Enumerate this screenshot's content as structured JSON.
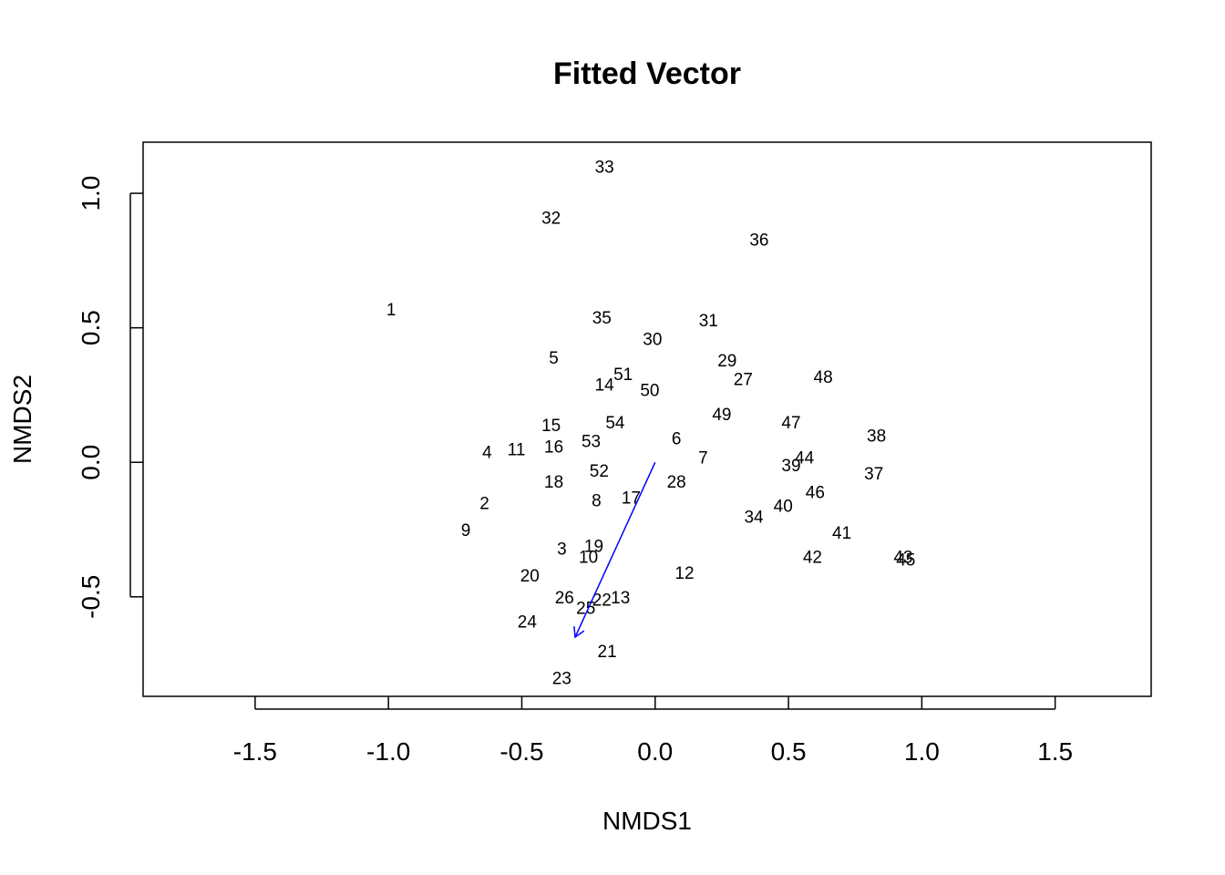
{
  "chart_data": {
    "type": "scatter",
    "title": "Fitted Vector",
    "xlabel": "NMDS1",
    "ylabel": "NMDS2",
    "xlim": [
      -1.92,
      1.86
    ],
    "ylim": [
      -0.87,
      1.19
    ],
    "x_ticks": [
      {
        "value": -1.5,
        "label": "-1.5"
      },
      {
        "value": -1.0,
        "label": "-1.0"
      },
      {
        "value": -0.5,
        "label": "-0.5"
      },
      {
        "value": 0.0,
        "label": "0.0"
      },
      {
        "value": 0.5,
        "label": "0.5"
      },
      {
        "value": 1.0,
        "label": "1.0"
      },
      {
        "value": 1.5,
        "label": "1.5"
      }
    ],
    "y_ticks": [
      {
        "value": -0.5,
        "label": "-0.5"
      },
      {
        "value": 0.0,
        "label": "0.0"
      },
      {
        "value": 0.5,
        "label": "0.5"
      },
      {
        "value": 1.0,
        "label": "1.0"
      }
    ],
    "grid": false,
    "points": [
      {
        "label": "1",
        "x": -0.99,
        "y": 0.57
      },
      {
        "label": "2",
        "x": -0.64,
        "y": -0.15
      },
      {
        "label": "3",
        "x": -0.35,
        "y": -0.32
      },
      {
        "label": "4",
        "x": -0.63,
        "y": 0.04
      },
      {
        "label": "5",
        "x": -0.38,
        "y": 0.39
      },
      {
        "label": "6",
        "x": 0.08,
        "y": 0.09
      },
      {
        "label": "7",
        "x": 0.18,
        "y": 0.02
      },
      {
        "label": "8",
        "x": -0.22,
        "y": -0.14
      },
      {
        "label": "9",
        "x": -0.71,
        "y": -0.25
      },
      {
        "label": "10",
        "x": -0.25,
        "y": -0.35
      },
      {
        "label": "11",
        "x": -0.52,
        "y": 0.05
      },
      {
        "label": "12",
        "x": 0.11,
        "y": -0.41
      },
      {
        "label": "13",
        "x": -0.13,
        "y": -0.5
      },
      {
        "label": "14",
        "x": -0.19,
        "y": 0.29
      },
      {
        "label": "15",
        "x": -0.39,
        "y": 0.14
      },
      {
        "label": "16",
        "x": -0.38,
        "y": 0.06
      },
      {
        "label": "17",
        "x": -0.09,
        "y": -0.13
      },
      {
        "label": "18",
        "x": -0.38,
        "y": -0.07
      },
      {
        "label": "19",
        "x": -0.23,
        "y": -0.31
      },
      {
        "label": "20",
        "x": -0.47,
        "y": -0.42
      },
      {
        "label": "21",
        "x": -0.18,
        "y": -0.7
      },
      {
        "label": "22",
        "x": -0.2,
        "y": -0.51
      },
      {
        "label": "23",
        "x": -0.35,
        "y": -0.8
      },
      {
        "label": "24",
        "x": -0.48,
        "y": -0.59
      },
      {
        "label": "25",
        "x": -0.26,
        "y": -0.54
      },
      {
        "label": "26",
        "x": -0.34,
        "y": -0.5
      },
      {
        "label": "27",
        "x": 0.33,
        "y": 0.31
      },
      {
        "label": "28",
        "x": 0.08,
        "y": -0.07
      },
      {
        "label": "29",
        "x": 0.27,
        "y": 0.38
      },
      {
        "label": "30",
        "x": -0.01,
        "y": 0.46
      },
      {
        "label": "31",
        "x": 0.2,
        "y": 0.53
      },
      {
        "label": "32",
        "x": -0.39,
        "y": 0.91
      },
      {
        "label": "33",
        "x": -0.19,
        "y": 1.1
      },
      {
        "label": "34",
        "x": 0.37,
        "y": -0.2
      },
      {
        "label": "35",
        "x": -0.2,
        "y": 0.54
      },
      {
        "label": "36",
        "x": 0.39,
        "y": 0.83
      },
      {
        "label": "37",
        "x": 0.82,
        "y": -0.04
      },
      {
        "label": "38",
        "x": 0.83,
        "y": 0.1
      },
      {
        "label": "39",
        "x": 0.51,
        "y": -0.01
      },
      {
        "label": "40",
        "x": 0.48,
        "y": -0.16
      },
      {
        "label": "41",
        "x": 0.7,
        "y": -0.26
      },
      {
        "label": "42",
        "x": 0.59,
        "y": -0.35
      },
      {
        "label": "43",
        "x": 0.93,
        "y": -0.35
      },
      {
        "label": "44",
        "x": 0.56,
        "y": 0.02
      },
      {
        "label": "45",
        "x": 0.94,
        "y": -0.36
      },
      {
        "label": "46",
        "x": 0.6,
        "y": -0.11
      },
      {
        "label": "47",
        "x": 0.51,
        "y": 0.15
      },
      {
        "label": "48",
        "x": 0.63,
        "y": 0.32
      },
      {
        "label": "49",
        "x": 0.25,
        "y": 0.18
      },
      {
        "label": "50",
        "x": -0.02,
        "y": 0.27
      },
      {
        "label": "51",
        "x": -0.12,
        "y": 0.33
      },
      {
        "label": "52",
        "x": -0.21,
        "y": -0.03
      },
      {
        "label": "53",
        "x": -0.24,
        "y": 0.08
      },
      {
        "label": "54",
        "x": -0.15,
        "y": 0.15
      }
    ],
    "vectors": [
      {
        "x0": 0.0,
        "y0": 0.0,
        "x1": -0.3,
        "y1": -0.65,
        "color": "#0000ff"
      }
    ]
  }
}
